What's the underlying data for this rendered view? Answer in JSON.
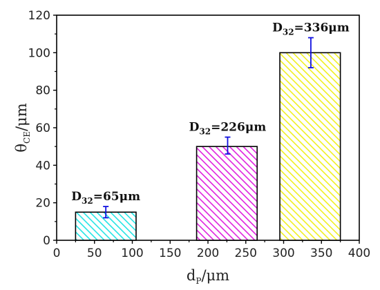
{
  "chart_data": {
    "type": "bar",
    "x": [
      65,
      226,
      336
    ],
    "values": [
      15,
      50,
      100
    ],
    "error_low": [
      12,
      46,
      92
    ],
    "error_high": [
      18,
      55,
      108
    ],
    "bar_x_range": [
      [
        25,
        105
      ],
      [
        185,
        265
      ],
      [
        295,
        375
      ]
    ],
    "data_labels": [
      {
        "main": "D",
        "sub": "32",
        "rest": "=65μm"
      },
      {
        "main": "D",
        "sub": "32",
        "rest": "=226μm"
      },
      {
        "main": "D",
        "sub": "32",
        "rest": "=336μm"
      }
    ],
    "bar_colors": [
      "#22e5e5",
      "#e020e0",
      "#f0f020"
    ],
    "error_color": "#1010e0",
    "xlim": [
      0,
      400
    ],
    "ylim": [
      0,
      120
    ],
    "xticks": [
      0,
      50,
      100,
      150,
      200,
      250,
      300,
      350,
      400
    ],
    "yticks": [
      0,
      20,
      40,
      60,
      80,
      100,
      120
    ],
    "xlabel": {
      "main": "d",
      "sub": "P",
      "rest": "/μm"
    },
    "ylabel": {
      "main": "θ",
      "sub": "CE",
      "rest": "/μm"
    },
    "grid": false,
    "bar_pattern": "diagonal-hatch"
  }
}
